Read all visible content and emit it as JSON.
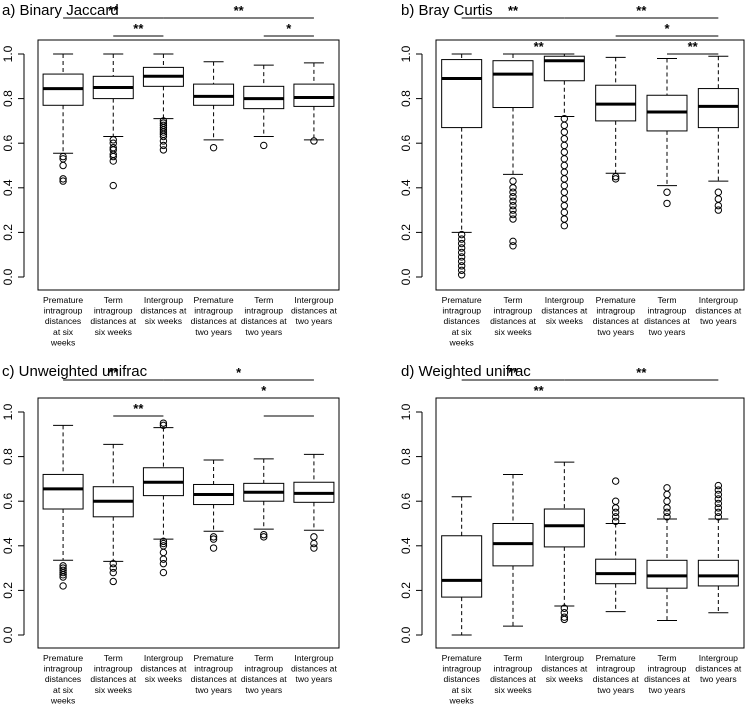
{
  "figure": {
    "box_color": "#000000",
    "background": "#ffffff",
    "category_labels": [
      [
        "Premature",
        "intragroup",
        "distances",
        "at six",
        "weeks"
      ],
      [
        "Term",
        "intragroup",
        "distances at",
        "six weeks"
      ],
      [
        "Intergroup",
        "distances at",
        "six weeks"
      ],
      [
        "Premature",
        "intragroup",
        "distances at",
        "two years"
      ],
      [
        "Term",
        "intragroup",
        "distances at",
        "two years"
      ],
      [
        "Intergroup",
        "distances at",
        "two years"
      ]
    ]
  },
  "chart_data": [
    {
      "type": "box",
      "title": "a) Binary Jaccard",
      "ylim": [
        0,
        1
      ],
      "yticks": [
        "0.0",
        "0.2",
        "0.4",
        "0.6",
        "0.8",
        "1.0"
      ],
      "categories": [
        "Premature intragroup distances at six weeks",
        "Term intragroup distances at six weeks",
        "Intergroup distances at six weeks",
        "Premature intragroup distances at two years",
        "Term intragroup distances at two years",
        "Intergroup distances at two years"
      ],
      "boxes": [
        {
          "whisker_low": 0.555,
          "q1": 0.77,
          "median": 0.845,
          "q3": 0.91,
          "whisker_high": 1.0,
          "outliers": [
            0.54,
            0.53,
            0.5,
            0.44,
            0.43
          ]
        },
        {
          "whisker_low": 0.63,
          "q1": 0.8,
          "median": 0.85,
          "q3": 0.9,
          "whisker_high": 1.0,
          "outliers": [
            0.615,
            0.6,
            0.58,
            0.57,
            0.55,
            0.54,
            0.52,
            0.41
          ]
        },
        {
          "whisker_low": 0.71,
          "q1": 0.855,
          "median": 0.9,
          "q3": 0.94,
          "whisker_high": 1.0,
          "outliers": [
            0.7,
            0.69,
            0.68,
            0.67,
            0.66,
            0.65,
            0.64,
            0.63,
            0.61,
            0.59,
            0.57
          ]
        },
        {
          "whisker_low": 0.615,
          "q1": 0.77,
          "median": 0.81,
          "q3": 0.865,
          "whisker_high": 0.965,
          "outliers": [
            0.58
          ]
        },
        {
          "whisker_low": 0.63,
          "q1": 0.755,
          "median": 0.8,
          "q3": 0.855,
          "whisker_high": 0.95,
          "outliers": [
            0.59
          ]
        },
        {
          "whisker_low": 0.615,
          "q1": 0.765,
          "median": 0.805,
          "q3": 0.865,
          "whisker_high": 0.96,
          "outliers": [
            0.61
          ]
        }
      ],
      "significance": [
        {
          "from": 1,
          "to": 3,
          "label": "**",
          "level": 0
        },
        {
          "from": 3,
          "to": 6,
          "label": "**",
          "level": 0
        },
        {
          "from": 2,
          "to": 3,
          "label": "**",
          "level": 1
        },
        {
          "from": 5,
          "to": 6,
          "label": "*",
          "level": 1
        }
      ]
    },
    {
      "type": "box",
      "title": "b) Bray Curtis",
      "ylim": [
        0,
        1
      ],
      "yticks": [
        "0.0",
        "0.2",
        "0.4",
        "0.6",
        "0.8",
        "1.0"
      ],
      "categories": [
        "Premature intragroup distances at six weeks",
        "Term intragroup distances at six weeks",
        "Intergroup distances at six weeks",
        "Premature intragroup distances at two years",
        "Term intragroup distances at two years",
        "Intergroup distances at two years"
      ],
      "boxes": [
        {
          "whisker_low": 0.2,
          "q1": 0.67,
          "median": 0.89,
          "q3": 0.975,
          "whisker_high": 1.0,
          "outliers": [
            0.19,
            0.17,
            0.15,
            0.13,
            0.11,
            0.09,
            0.07,
            0.05,
            0.03,
            0.01
          ]
        },
        {
          "whisker_low": 0.46,
          "q1": 0.76,
          "median": 0.91,
          "q3": 0.97,
          "whisker_high": 1.0,
          "outliers": [
            0.43,
            0.4,
            0.38,
            0.36,
            0.34,
            0.32,
            0.3,
            0.28,
            0.26,
            0.16,
            0.14
          ]
        },
        {
          "whisker_low": 0.72,
          "q1": 0.88,
          "median": 0.97,
          "q3": 0.99,
          "whisker_high": 1.0,
          "outliers": [
            0.71,
            0.68,
            0.65,
            0.62,
            0.59,
            0.56,
            0.53,
            0.5,
            0.47,
            0.44,
            0.41,
            0.38,
            0.35,
            0.32,
            0.29,
            0.26,
            0.23
          ]
        },
        {
          "whisker_low": 0.465,
          "q1": 0.7,
          "median": 0.775,
          "q3": 0.86,
          "whisker_high": 0.985,
          "outliers": [
            0.45,
            0.44
          ]
        },
        {
          "whisker_low": 0.41,
          "q1": 0.655,
          "median": 0.74,
          "q3": 0.815,
          "whisker_high": 0.98,
          "outliers": [
            0.38,
            0.33
          ]
        },
        {
          "whisker_low": 0.43,
          "q1": 0.67,
          "median": 0.765,
          "q3": 0.845,
          "whisker_high": 0.99,
          "outliers": [
            0.38,
            0.35,
            0.32,
            0.3
          ]
        }
      ],
      "significance": [
        {
          "from": 1,
          "to": 3,
          "label": "**",
          "level": 0
        },
        {
          "from": 3,
          "to": 6,
          "label": "**",
          "level": 0
        },
        {
          "from": 4,
          "to": 6,
          "label": "*",
          "level": 1
        },
        {
          "from": 2,
          "to": 3,
          "label": "**",
          "level": 2
        },
        {
          "from": 5,
          "to": 6,
          "label": "**",
          "level": 2
        }
      ]
    },
    {
      "type": "box",
      "title": "c) Unweighted unifrac",
      "ylim": [
        0,
        1
      ],
      "yticks": [
        "0.0",
        "0.2",
        "0.4",
        "0.6",
        "0.8",
        "1.0"
      ],
      "categories": [
        "Premature intragroup distances at six weeks",
        "Term intragroup distances at six weeks",
        "Intergroup distances at six weeks",
        "Premature intragroup distances at two years",
        "Term intragroup distances at two years",
        "Intergroup distances at two years"
      ],
      "boxes": [
        {
          "whisker_low": 0.335,
          "q1": 0.565,
          "median": 0.655,
          "q3": 0.72,
          "whisker_high": 0.94,
          "outliers": [
            0.31,
            0.3,
            0.29,
            0.28,
            0.27,
            0.26,
            0.22
          ]
        },
        {
          "whisker_low": 0.33,
          "q1": 0.53,
          "median": 0.6,
          "q3": 0.665,
          "whisker_high": 0.855,
          "outliers": [
            0.32,
            0.3,
            0.28,
            0.24
          ]
        },
        {
          "whisker_low": 0.43,
          "q1": 0.625,
          "median": 0.685,
          "q3": 0.75,
          "whisker_high": 0.93,
          "outliers": [
            0.95,
            0.94,
            0.42,
            0.41,
            0.4,
            0.37,
            0.34,
            0.32,
            0.28
          ]
        },
        {
          "whisker_low": 0.465,
          "q1": 0.585,
          "median": 0.63,
          "q3": 0.675,
          "whisker_high": 0.785,
          "outliers": [
            0.44,
            0.43,
            0.39
          ]
        },
        {
          "whisker_low": 0.475,
          "q1": 0.6,
          "median": 0.64,
          "q3": 0.68,
          "whisker_high": 0.79,
          "outliers": [
            0.45,
            0.44
          ]
        },
        {
          "whisker_low": 0.47,
          "q1": 0.595,
          "median": 0.635,
          "q3": 0.685,
          "whisker_high": 0.81,
          "outliers": [
            0.44,
            0.41,
            0.39
          ]
        }
      ],
      "significance": [
        {
          "from": 1,
          "to": 3,
          "label": "**",
          "level": 0
        },
        {
          "from": 3,
          "to": 6,
          "label": "*",
          "level": 0
        },
        {
          "from": 4,
          "to": 6,
          "label": "*",
          "level": 1
        },
        {
          "from": 2,
          "to": 3,
          "label": "**",
          "level": 2
        },
        {
          "from": 5,
          "to": 6,
          "label": "",
          "level": 2
        }
      ]
    },
    {
      "type": "box",
      "title": "d) Weighted unifrac",
      "ylim": [
        0,
        1
      ],
      "yticks": [
        "0.0",
        "0.2",
        "0.4",
        "0.6",
        "0.8",
        "1.0"
      ],
      "categories": [
        "Premature intragroup distances at six weeks",
        "Term intragroup distances at six weeks",
        "Intergroup distances at six weeks",
        "Premature intragroup distances at two years",
        "Term intragroup distances at two years",
        "Intergroup distances at two years"
      ],
      "boxes": [
        {
          "whisker_low": 0.0,
          "q1": 0.17,
          "median": 0.245,
          "q3": 0.445,
          "whisker_high": 0.62,
          "outliers": []
        },
        {
          "whisker_low": 0.04,
          "q1": 0.31,
          "median": 0.41,
          "q3": 0.5,
          "whisker_high": 0.72,
          "outliers": []
        },
        {
          "whisker_low": 0.13,
          "q1": 0.395,
          "median": 0.49,
          "q3": 0.565,
          "whisker_high": 0.775,
          "outliers": [
            0.12,
            0.1,
            0.08,
            0.07
          ]
        },
        {
          "whisker_low": 0.105,
          "q1": 0.23,
          "median": 0.275,
          "q3": 0.34,
          "whisker_high": 0.5,
          "outliers": [
            0.51,
            0.53,
            0.55,
            0.57,
            0.6,
            0.69
          ]
        },
        {
          "whisker_low": 0.065,
          "q1": 0.21,
          "median": 0.265,
          "q3": 0.335,
          "whisker_high": 0.52,
          "outliers": [
            0.53,
            0.55,
            0.57,
            0.6,
            0.63,
            0.66
          ]
        },
        {
          "whisker_low": 0.1,
          "q1": 0.22,
          "median": 0.265,
          "q3": 0.335,
          "whisker_high": 0.52,
          "outliers": [
            0.53,
            0.55,
            0.57,
            0.59,
            0.61,
            0.63,
            0.65,
            0.67
          ]
        }
      ],
      "significance": [
        {
          "from": 1,
          "to": 3,
          "label": "**",
          "level": 0
        },
        {
          "from": 3,
          "to": 6,
          "label": "**",
          "level": 0
        },
        {
          "from": 2,
          "to": 3,
          "label": "**",
          "level": 1
        },
        {
          "from": 5,
          "to": 6,
          "label": "",
          "level": 1
        }
      ]
    }
  ]
}
